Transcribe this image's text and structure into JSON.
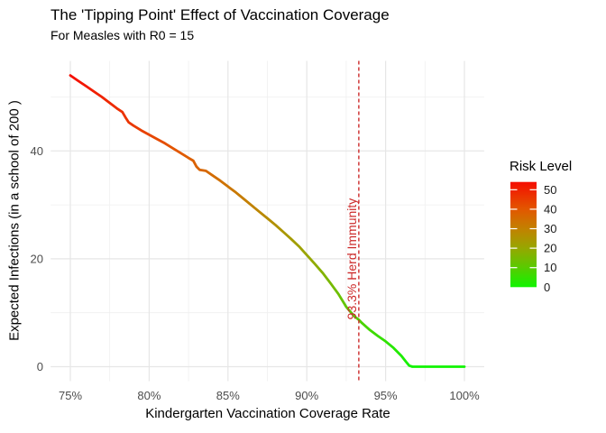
{
  "header": {
    "title": "The 'Tipping Point' Effect of Vaccination Coverage",
    "subtitle": "For Measles with R0 = 15"
  },
  "axes": {
    "x": {
      "label": "Kindergarten Vaccination Coverage Rate",
      "ticks": [
        {
          "value": 75,
          "label": "75%"
        },
        {
          "value": 80,
          "label": "80%"
        },
        {
          "value": 85,
          "label": "85%"
        },
        {
          "value": 90,
          "label": "90%"
        },
        {
          "value": 95,
          "label": "95%"
        },
        {
          "value": 100,
          "label": "100%"
        }
      ],
      "minor_ticks": [
        77.5,
        82.5,
        87.5,
        92.5,
        97.5
      ]
    },
    "y": {
      "label": "Expected Infections (in a school of 200 )",
      "ticks": [
        {
          "value": 0,
          "label": "0"
        },
        {
          "value": 20,
          "label": "20"
        },
        {
          "value": 40,
          "label": "40"
        }
      ],
      "minor_ticks": [
        10,
        30,
        50
      ]
    }
  },
  "legend": {
    "title": "Risk Level",
    "ticks": [
      {
        "value": 50,
        "label": "50"
      },
      {
        "value": 40,
        "label": "40"
      },
      {
        "value": 30,
        "label": "30"
      },
      {
        "value": 20,
        "label": "20"
      },
      {
        "value": 10,
        "label": "10"
      },
      {
        "value": 0,
        "label": "0"
      }
    ],
    "max_value": 54
  },
  "annotation": {
    "label": "93.3% Herd Immunity",
    "x_value": 93.3,
    "y_center_value": 20,
    "color": "#cc2a2a"
  },
  "chart_data": {
    "type": "line",
    "title": "The 'Tipping Point' Effect of Vaccination Coverage",
    "subtitle": "For Measles with R0 = 15",
    "xlabel": "Kindergarten Vaccination Coverage Rate",
    "ylabel": "Expected Infections (in a school of 200 )",
    "xlim": [
      75,
      100
    ],
    "ylim": [
      0,
      54
    ],
    "grid": true,
    "legend_position": "right",
    "color_scale_name": "Risk Level",
    "palette": [
      {
        "value": 54,
        "color": "#f50d00"
      },
      {
        "value": 40,
        "color": "#e25700"
      },
      {
        "value": 30,
        "color": "#c28100"
      },
      {
        "value": 20,
        "color": "#96a700"
      },
      {
        "value": 10,
        "color": "#58cb00"
      },
      {
        "value": 0,
        "color": "#10f400"
      }
    ],
    "herd_immunity_threshold_pct": 93.3,
    "x": [
      75,
      75.5,
      76,
      76.5,
      77,
      77.5,
      78,
      78.3,
      78.5,
      78.7,
      79,
      79.5,
      80,
      80.5,
      81,
      81.5,
      82,
      82.5,
      82.8,
      83,
      83.2,
      83.6,
      84,
      84.5,
      85,
      85.5,
      86,
      86.5,
      87,
      87.5,
      88,
      88.5,
      89,
      89.5,
      90,
      90.5,
      91,
      91.5,
      92,
      92.5,
      93,
      93.3,
      93.5,
      94,
      94.5,
      95,
      95.5,
      96,
      96.3,
      96.5,
      96.7,
      97,
      97.5,
      98,
      98.5,
      99,
      99.5,
      100
    ],
    "y": [
      54,
      53,
      52,
      51,
      50,
      48.9,
      47.8,
      47.2,
      46.2,
      45.3,
      44.7,
      43.8,
      43,
      42.2,
      41.4,
      40.5,
      39.6,
      38.7,
      38.2,
      37.1,
      36.5,
      36.3,
      35.5,
      34.5,
      33.4,
      32.3,
      31.1,
      29.9,
      28.7,
      27.5,
      26.3,
      25,
      23.7,
      22.3,
      20.7,
      19.1,
      17.4,
      15.5,
      13.5,
      11.1,
      9.4,
      8.7,
      8.1,
      6.8,
      5.7,
      4.7,
      3.5,
      2,
      0.9,
      0.2,
      0,
      0,
      0,
      0,
      0,
      0,
      0,
      0
    ]
  }
}
